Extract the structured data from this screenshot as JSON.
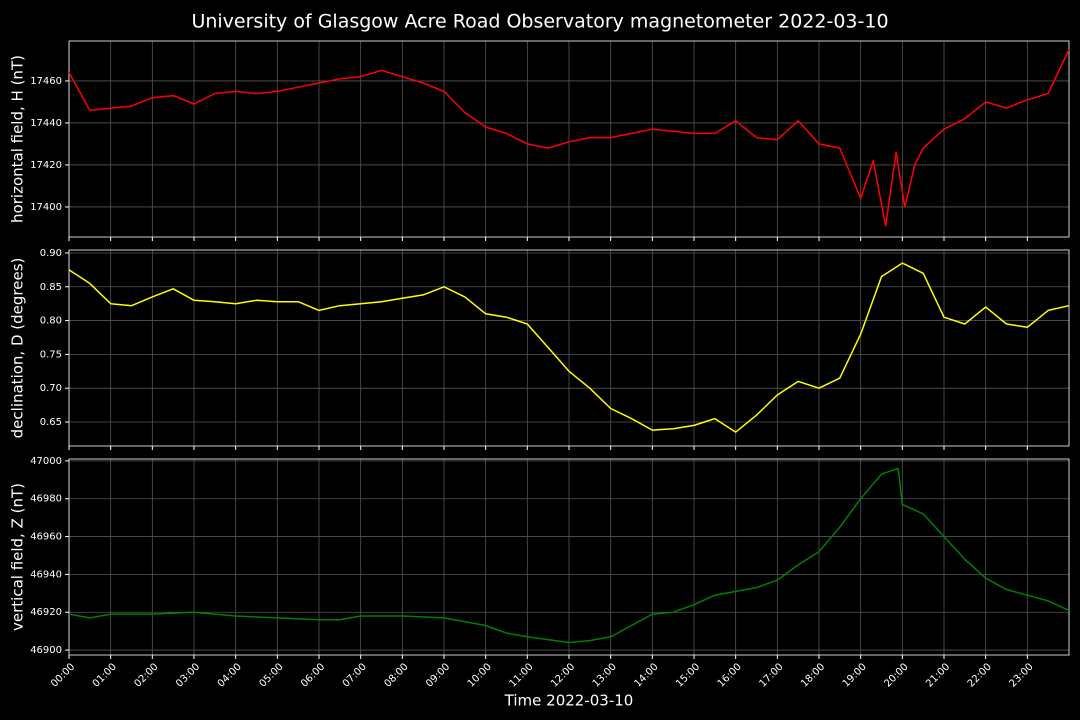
{
  "title": "University of Glasgow Acre Road Observatory magnetometer 2022-03-10",
  "chart_data": [
    {
      "type": "line",
      "ylabel": "horizontal field, H (nT)",
      "color": "#ff0000",
      "grid": true,
      "xlim": [
        0,
        24
      ],
      "ylim": [
        17385.7,
        17479
      ],
      "yticks": [
        17400,
        17420,
        17440,
        17460
      ],
      "x": [
        0,
        0.5,
        1,
        1.5,
        2,
        2.5,
        3,
        3.5,
        4,
        4.5,
        5,
        5.5,
        6,
        6.5,
        7,
        7.5,
        8,
        8.5,
        9,
        9.5,
        10,
        10.5,
        11,
        11.5,
        12,
        12.5,
        13,
        13.5,
        14,
        14.5,
        15,
        15.5,
        16,
        16.5,
        17,
        17.5,
        18,
        18.5,
        19,
        19.3,
        19.6,
        19.85,
        20.06,
        20.3,
        20.5,
        21,
        21.5,
        22,
        22.5,
        23,
        23.5,
        24
      ],
      "values": [
        17464,
        17446,
        17447,
        17448,
        17452,
        17453,
        17449,
        17454,
        17455,
        17454,
        17455,
        17457,
        17459,
        17461,
        17462,
        17465,
        17462,
        17459,
        17455,
        17445,
        17438,
        17435,
        17430,
        17428,
        17431,
        17433,
        17433,
        17435,
        17437,
        17436,
        17435,
        17435,
        17441,
        17433,
        17432,
        17441,
        17430,
        17428,
        17404,
        17422,
        17391,
        17426,
        17400,
        17420,
        17428,
        17437,
        17442,
        17450,
        17447,
        17451,
        17454,
        17475
      ]
    },
    {
      "type": "line",
      "ylabel": "declination, D (degrees)",
      "color": "#ffff00",
      "grid": true,
      "xlim": [
        0,
        24
      ],
      "ylim": [
        0.6145,
        0.9044
      ],
      "yticks": [
        {
          "value": 0.65,
          "label": "0.65"
        },
        {
          "value": 0.7,
          "label": "0.70"
        },
        {
          "value": 0.75,
          "label": "0.75"
        },
        {
          "value": 0.8,
          "label": "0.80"
        },
        {
          "value": 0.85,
          "label": "0.85"
        },
        {
          "value": 0.9,
          "label": "0.90"
        }
      ],
      "x": [
        0,
        0.5,
        1,
        1.5,
        2,
        2.5,
        3,
        3.5,
        4,
        4.5,
        5,
        5.5,
        6,
        6.5,
        7,
        7.5,
        8,
        8.5,
        9,
        9.5,
        10,
        10.5,
        11,
        11.5,
        12,
        12.5,
        13,
        13.5,
        14,
        14.5,
        15,
        15.5,
        16,
        16.5,
        17,
        17.5,
        18,
        18.5,
        19,
        19.5,
        20,
        20.5,
        21,
        21.5,
        22,
        22.5,
        23,
        23.5,
        24
      ],
      "values": [
        0.875,
        0.855,
        0.825,
        0.822,
        0.835,
        0.847,
        0.83,
        0.828,
        0.825,
        0.83,
        0.828,
        0.828,
        0.815,
        0.822,
        0.825,
        0.828,
        0.833,
        0.838,
        0.85,
        0.835,
        0.81,
        0.805,
        0.795,
        0.76,
        0.725,
        0.7,
        0.67,
        0.655,
        0.638,
        0.64,
        0.645,
        0.655,
        0.635,
        0.66,
        0.69,
        0.71,
        0.7,
        0.715,
        0.78,
        0.865,
        0.885,
        0.87,
        0.805,
        0.795,
        0.82,
        0.795,
        0.79,
        0.815,
        0.822
      ]
    },
    {
      "type": "line",
      "ylabel": "vertical field, Z (nT)",
      "color": "#008000",
      "grid": true,
      "xlabel": "Time 2022-03-10",
      "xlim": [
        0,
        24
      ],
      "ylim": [
        46897.4,
        47001
      ],
      "yticks": [
        46900,
        46920,
        46940,
        46960,
        46980,
        47000
      ],
      "xticks": [
        {
          "value": 0,
          "label": "00:00"
        },
        {
          "value": 1,
          "label": "01:00"
        },
        {
          "value": 2,
          "label": "02:00"
        },
        {
          "value": 3,
          "label": "03:00"
        },
        {
          "value": 4,
          "label": "04:00"
        },
        {
          "value": 5,
          "label": "05:00"
        },
        {
          "value": 6,
          "label": "06:00"
        },
        {
          "value": 7,
          "label": "07:00"
        },
        {
          "value": 8,
          "label": "08:00"
        },
        {
          "value": 9,
          "label": "09:00"
        },
        {
          "value": 10,
          "label": "10:00"
        },
        {
          "value": 11,
          "label": "11:00"
        },
        {
          "value": 12,
          "label": "12:00"
        },
        {
          "value": 13,
          "label": "13:00"
        },
        {
          "value": 14,
          "label": "14:00"
        },
        {
          "value": 15,
          "label": "15:00"
        },
        {
          "value": 16,
          "label": "16:00"
        },
        {
          "value": 17,
          "label": "17:00"
        },
        {
          "value": 18,
          "label": "18:00"
        },
        {
          "value": 19,
          "label": "19:00"
        },
        {
          "value": 20,
          "label": "20:00"
        },
        {
          "value": 21,
          "label": "21:00"
        },
        {
          "value": 22,
          "label": "22:00"
        },
        {
          "value": 23,
          "label": "23:00"
        }
      ],
      "x": [
        0,
        0.5,
        1,
        2,
        3,
        4,
        5,
        6,
        6.5,
        7,
        8,
        9,
        10,
        10.5,
        11,
        12,
        12.5,
        13,
        13.5,
        14,
        14.5,
        15,
        15.5,
        16,
        16.5,
        17,
        17.5,
        18,
        18.5,
        19,
        19.5,
        19.9,
        20,
        20.5,
        21,
        21.5,
        22,
        22.5,
        23,
        23.5,
        24
      ],
      "values": [
        46919,
        46917,
        46919,
        46919,
        46920,
        46918,
        46917,
        46916,
        46916,
        46918,
        46918,
        46917,
        46913,
        46909,
        46907,
        46904,
        46905,
        46907,
        46913,
        46919,
        46920,
        46924,
        46929,
        46931,
        46933,
        46937,
        46945,
        46952,
        46965,
        46980,
        46993,
        46996,
        46977,
        46972,
        46960,
        46948,
        46938,
        46932,
        46929,
        46926,
        46921
      ]
    }
  ]
}
